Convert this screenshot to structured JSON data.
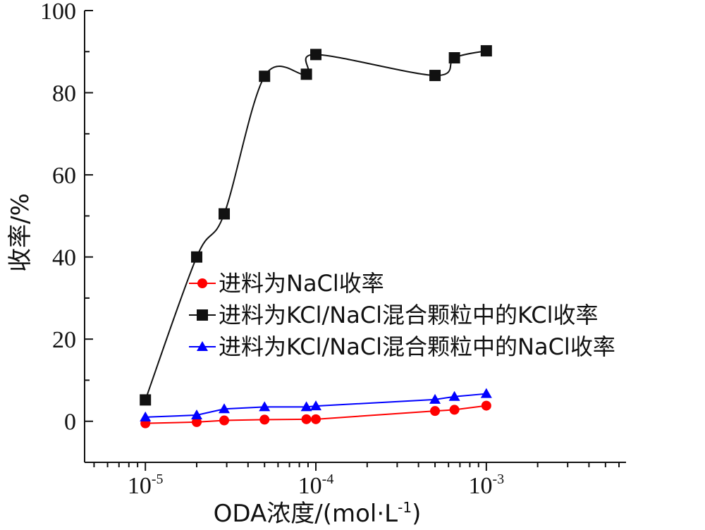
{
  "chart_data": {
    "type": "line",
    "xscale": "log",
    "xlim": [
      4.4e-06,
      0.0066
    ],
    "ylim": [
      -10,
      100
    ],
    "xticks": [
      {
        "value": 1e-05,
        "base": "10",
        "exp": "-5"
      },
      {
        "value": 0.0001,
        "base": "10",
        "exp": "-4"
      },
      {
        "value": 0.001,
        "base": "10",
        "exp": "-3"
      }
    ],
    "yticks": [
      "0",
      "20",
      "40",
      "60",
      "80",
      "100"
    ],
    "xlabel": {
      "main": "ODA浓度/(mol·L",
      "sup": "-1",
      "tail": ")"
    },
    "ylabel": "收率/%",
    "legend_position": "middle-right",
    "series": [
      {
        "name": "进料为NaCl收率",
        "color": "#ff0000",
        "marker": "circle",
        "x": [
          1e-05,
          2e-05,
          2.9e-05,
          5e-05,
          8.8e-05,
          0.0001,
          0.0005,
          0.00065,
          0.001
        ],
        "y": [
          -0.5,
          -0.2,
          0.2,
          0.4,
          0.5,
          0.5,
          2.5,
          2.8,
          3.8
        ]
      },
      {
        "name": "进料为KCl/NaCl混合颗粒中的KCl收率",
        "color": "#111111",
        "marker": "square",
        "smooth": true,
        "x": [
          1e-05,
          2e-05,
          2.9e-05,
          5e-05,
          8.8e-05,
          0.0001,
          0.0005,
          0.00065,
          0.001
        ],
        "y": [
          5.2,
          40,
          50.5,
          84,
          84.5,
          89.3,
          84.2,
          88.5,
          90.2
        ]
      },
      {
        "name": "进料为KCl/NaCl混合颗粒中的NaCl收率",
        "color": "#0000ff",
        "marker": "triangle",
        "x": [
          1e-05,
          2e-05,
          2.9e-05,
          5e-05,
          8.8e-05,
          0.0001,
          0.0005,
          0.00065,
          0.001
        ],
        "y": [
          1.0,
          1.5,
          3.0,
          3.5,
          3.5,
          3.7,
          5.3,
          6.0,
          6.7
        ]
      }
    ]
  }
}
